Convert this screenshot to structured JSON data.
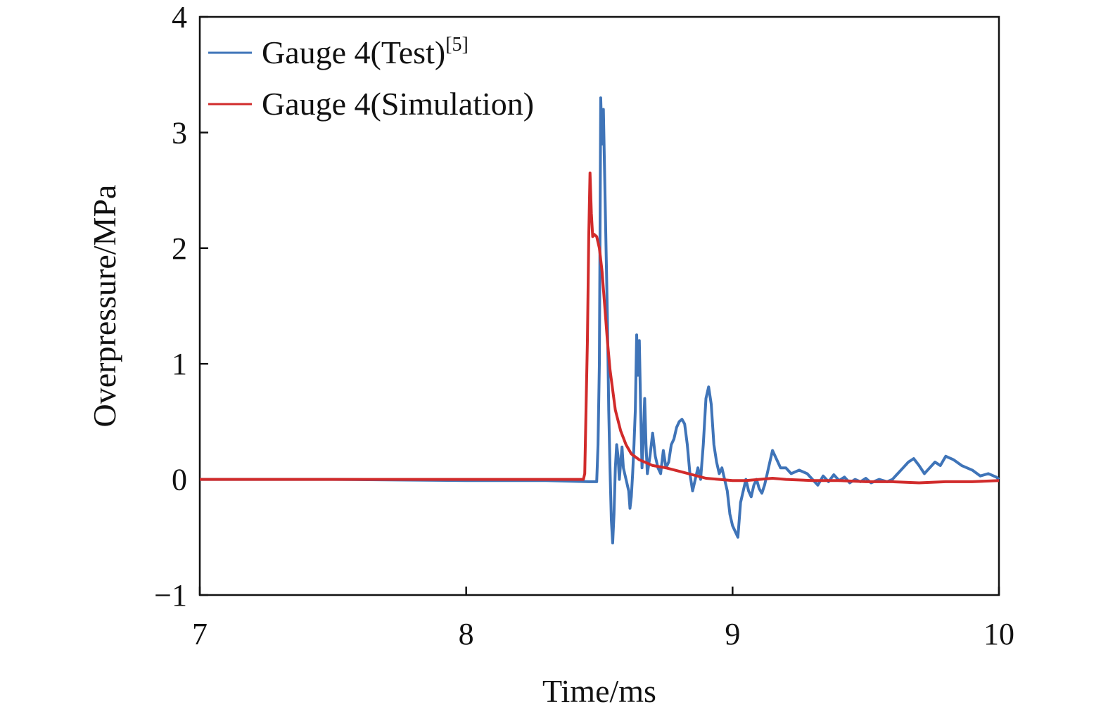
{
  "chart_data": {
    "type": "line",
    "title": "",
    "xlabel": "Time/ms",
    "ylabel": "Overpressure/MPa",
    "xlim": [
      7,
      10
    ],
    "ylim": [
      -1,
      4
    ],
    "xticks": [
      7,
      8,
      9,
      10
    ],
    "yticks": [
      -1,
      0,
      1,
      2,
      3,
      4
    ],
    "ytick_labels": [
      "−1",
      "0",
      "1",
      "2",
      "3",
      "4"
    ],
    "grid": false,
    "legend_position": "top-left",
    "series": [
      {
        "name": "Gauge 4(Test)",
        "name_superscript": "[5]",
        "color": "#3f74b8",
        "points": [
          [
            7.0,
            0.0
          ],
          [
            7.5,
            0.0
          ],
          [
            8.0,
            -0.01
          ],
          [
            8.3,
            -0.01
          ],
          [
            8.46,
            -0.02
          ],
          [
            8.49,
            -0.02
          ],
          [
            8.495,
            0.3
          ],
          [
            8.5,
            1.0
          ],
          [
            8.505,
            3.3
          ],
          [
            8.51,
            2.9
          ],
          [
            8.515,
            3.2
          ],
          [
            8.52,
            2.6
          ],
          [
            8.525,
            2.0
          ],
          [
            8.53,
            1.4
          ],
          [
            8.535,
            0.6
          ],
          [
            8.54,
            0.1
          ],
          [
            8.545,
            -0.35
          ],
          [
            8.55,
            -0.55
          ],
          [
            8.555,
            -0.3
          ],
          [
            8.56,
            0.1
          ],
          [
            8.565,
            0.3
          ],
          [
            8.57,
            0.2
          ],
          [
            8.575,
            0.0
          ],
          [
            8.58,
            0.15
          ],
          [
            8.585,
            0.28
          ],
          [
            8.59,
            0.1
          ],
          [
            8.6,
            0.0
          ],
          [
            8.61,
            -0.1
          ],
          [
            8.615,
            -0.25
          ],
          [
            8.62,
            -0.15
          ],
          [
            8.625,
            0.05
          ],
          [
            8.63,
            0.3
          ],
          [
            8.635,
            0.6
          ],
          [
            8.64,
            1.25
          ],
          [
            8.645,
            0.9
          ],
          [
            8.65,
            1.2
          ],
          [
            8.655,
            0.6
          ],
          [
            8.66,
            0.1
          ],
          [
            8.665,
            0.35
          ],
          [
            8.67,
            0.7
          ],
          [
            8.675,
            0.3
          ],
          [
            8.68,
            0.05
          ],
          [
            8.69,
            0.2
          ],
          [
            8.7,
            0.4
          ],
          [
            8.71,
            0.2
          ],
          [
            8.72,
            0.1
          ],
          [
            8.73,
            0.05
          ],
          [
            8.74,
            0.25
          ],
          [
            8.75,
            0.1
          ],
          [
            8.76,
            0.15
          ],
          [
            8.77,
            0.3
          ],
          [
            8.78,
            0.35
          ],
          [
            8.79,
            0.45
          ],
          [
            8.8,
            0.5
          ],
          [
            8.81,
            0.52
          ],
          [
            8.82,
            0.48
          ],
          [
            8.83,
            0.3
          ],
          [
            8.84,
            0.05
          ],
          [
            8.85,
            -0.1
          ],
          [
            8.86,
            0.0
          ],
          [
            8.87,
            0.1
          ],
          [
            8.88,
            0.0
          ],
          [
            8.89,
            0.3
          ],
          [
            8.9,
            0.7
          ],
          [
            8.91,
            0.8
          ],
          [
            8.92,
            0.65
          ],
          [
            8.93,
            0.3
          ],
          [
            8.94,
            0.15
          ],
          [
            8.95,
            0.05
          ],
          [
            8.96,
            0.1
          ],
          [
            8.97,
            0.0
          ],
          [
            8.98,
            -0.1
          ],
          [
            8.99,
            -0.3
          ],
          [
            9.0,
            -0.4
          ],
          [
            9.01,
            -0.45
          ],
          [
            9.02,
            -0.5
          ],
          [
            9.03,
            -0.2
          ],
          [
            9.04,
            -0.1
          ],
          [
            9.05,
            0.0
          ],
          [
            9.06,
            -0.1
          ],
          [
            9.07,
            -0.15
          ],
          [
            9.08,
            -0.05
          ],
          [
            9.09,
            0.0
          ],
          [
            9.1,
            -0.08
          ],
          [
            9.11,
            -0.12
          ],
          [
            9.12,
            -0.05
          ],
          [
            9.13,
            0.05
          ],
          [
            9.14,
            0.15
          ],
          [
            9.15,
            0.25
          ],
          [
            9.16,
            0.2
          ],
          [
            9.17,
            0.15
          ],
          [
            9.18,
            0.1
          ],
          [
            9.2,
            0.1
          ],
          [
            9.22,
            0.05
          ],
          [
            9.25,
            0.08
          ],
          [
            9.28,
            0.05
          ],
          [
            9.3,
            0.0
          ],
          [
            9.32,
            -0.05
          ],
          [
            9.34,
            0.03
          ],
          [
            9.36,
            -0.02
          ],
          [
            9.38,
            0.04
          ],
          [
            9.4,
            -0.01
          ],
          [
            9.42,
            0.02
          ],
          [
            9.44,
            -0.03
          ],
          [
            9.46,
            0.0
          ],
          [
            9.48,
            -0.02
          ],
          [
            9.5,
            0.01
          ],
          [
            9.52,
            -0.03
          ],
          [
            9.55,
            0.0
          ],
          [
            9.58,
            -0.02
          ],
          [
            9.6,
            0.0
          ],
          [
            9.62,
            0.05
          ],
          [
            9.64,
            0.1
          ],
          [
            9.66,
            0.15
          ],
          [
            9.68,
            0.18
          ],
          [
            9.7,
            0.12
          ],
          [
            9.72,
            0.05
          ],
          [
            9.74,
            0.1
          ],
          [
            9.76,
            0.15
          ],
          [
            9.78,
            0.12
          ],
          [
            9.8,
            0.2
          ],
          [
            9.83,
            0.17
          ],
          [
            9.86,
            0.12
          ],
          [
            9.9,
            0.08
          ],
          [
            9.93,
            0.03
          ],
          [
            9.96,
            0.05
          ],
          [
            9.99,
            0.02
          ],
          [
            10.0,
            0.0
          ]
        ]
      },
      {
        "name": "Gauge 4(Simulation)",
        "color": "#d12b2b",
        "points": [
          [
            7.0,
            0.0
          ],
          [
            7.5,
            0.0
          ],
          [
            8.0,
            0.0
          ],
          [
            8.4,
            0.0
          ],
          [
            8.44,
            0.0
          ],
          [
            8.445,
            0.05
          ],
          [
            8.455,
            1.2
          ],
          [
            8.46,
            2.1
          ],
          [
            8.465,
            2.65
          ],
          [
            8.47,
            2.3
          ],
          [
            8.475,
            2.1
          ],
          [
            8.48,
            2.12
          ],
          [
            8.49,
            2.1
          ],
          [
            8.5,
            2.0
          ],
          [
            8.51,
            1.8
          ],
          [
            8.52,
            1.5
          ],
          [
            8.53,
            1.2
          ],
          [
            8.54,
            0.95
          ],
          [
            8.56,
            0.6
          ],
          [
            8.58,
            0.42
          ],
          [
            8.6,
            0.3
          ],
          [
            8.62,
            0.22
          ],
          [
            8.65,
            0.17
          ],
          [
            8.68,
            0.14
          ],
          [
            8.7,
            0.12
          ],
          [
            8.75,
            0.1
          ],
          [
            8.8,
            0.07
          ],
          [
            8.85,
            0.04
          ],
          [
            8.9,
            0.01
          ],
          [
            8.95,
            0.0
          ],
          [
            9.0,
            -0.01
          ],
          [
            9.05,
            -0.01
          ],
          [
            9.1,
            0.0
          ],
          [
            9.15,
            0.01
          ],
          [
            9.2,
            0.0
          ],
          [
            9.3,
            -0.01
          ],
          [
            9.4,
            -0.01
          ],
          [
            9.5,
            -0.02
          ],
          [
            9.6,
            -0.02
          ],
          [
            9.7,
            -0.03
          ],
          [
            9.8,
            -0.02
          ],
          [
            9.9,
            -0.02
          ],
          [
            10.0,
            -0.01
          ]
        ]
      }
    ]
  }
}
